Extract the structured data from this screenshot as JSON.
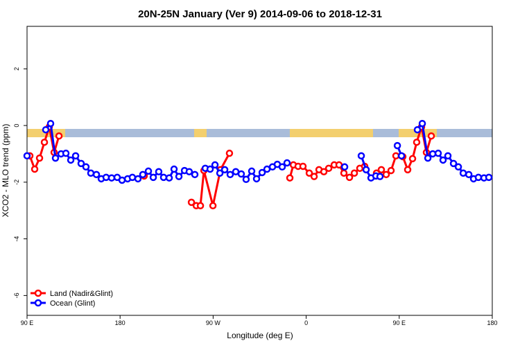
{
  "chart_data": {
    "type": "line",
    "title": "20N-25N January (Ver 9)   2014-09-06 to 2018-12-31",
    "x_label": "Longitude (deg E)",
    "y_label": "XCO2 - MLO trend (ppm)",
    "xlim": [
      90,
      540
    ],
    "ylim": [
      -6.7,
      3.5
    ],
    "xticks": [
      {
        "value": 90,
        "label": "90 E"
      },
      {
        "value": 180,
        "label": "180"
      },
      {
        "value": 270,
        "label": "90 W"
      },
      {
        "value": 360,
        "label": "0"
      },
      {
        "value": 450,
        "label": "90 E"
      },
      {
        "value": 540,
        "label": "180"
      }
    ],
    "yticks": [
      2,
      0,
      -2,
      -4,
      -6
    ],
    "legend": "bottom-left",
    "series": [
      {
        "name": "Land (Nadir&Glint)",
        "color": "#ff0000",
        "x": [
          92.7,
          97.4,
          102.1,
          106.8,
          111.5,
          116.2,
          120.9,
          null,
          203.3,
          null,
          249.0,
          253.7,
          257.7,
          261.1,
          269.8,
          277.1,
          285.8,
          null,
          344.2,
          347.6,
          352.2,
          356.9,
          363.0,
          367.7,
          372.4,
          377.1,
          381.8,
          387.1,
          391.8,
          396.5,
          401.9,
          406.6,
          411.9,
          416.6,
          null,
          428.0,
          432.7,
          437.4,
          442.1,
          446.8,
          453.5,
          458.2,
          462.9,
          466.9,
          471.6,
          476.3,
          481.0
        ],
        "values": [
          -1.07,
          -1.54,
          -1.15,
          -0.59,
          -0.05,
          -0.95,
          -0.37,
          null,
          -1.78,
          null,
          -2.71,
          -2.83,
          -2.83,
          -1.59,
          -2.83,
          -1.56,
          -0.98,
          null,
          -1.85,
          -1.39,
          -1.44,
          -1.44,
          -1.68,
          -1.8,
          -1.56,
          -1.63,
          -1.51,
          -1.39,
          -1.39,
          -1.68,
          -1.83,
          -1.68,
          -1.51,
          -1.44,
          null,
          -1.68,
          -1.56,
          -1.73,
          -1.59,
          -1.07,
          -1.1,
          -1.56,
          -1.17,
          -0.59,
          -0.05,
          -0.95,
          -0.37
        ]
      },
      {
        "name": "Ocean (Glint)",
        "color": "#0000ff",
        "x": [
          90.0,
          null,
          108.1,
          112.8,
          117.5,
          122.9,
          127.6,
          132.3,
          137.0,
          142.3,
          147.0,
          151.7,
          157.1,
          161.8,
          166.5,
          171.8,
          177.2,
          181.9,
          187.3,
          191.9,
          197.3,
          202.0,
          207.4,
          212.1,
          217.4,
          222.1,
          227.5,
          232.2,
          236.9,
          242.3,
          246.9,
          252.3,
          null,
          262.4,
          267.1,
          271.8,
          276.5,
          281.2,
          286.5,
          291.9,
          297.2,
          301.9,
          307.3,
          312.0,
          317.4,
          322.1,
          327.4,
          332.1,
          336.8,
          341.5,
          null,
          397.2,
          null,
          413.3,
          418.0,
          422.7,
          427.4,
          431.4,
          null,
          448.2,
          452.2,
          null,
          467.6,
          472.3,
          477.7,
          482.4,
          487.7,
          492.4,
          497.1,
          502.5,
          507.2,
          511.9,
          517.3,
          521.9,
          526.6,
          532.0,
          536.7
        ],
        "values": [
          -1.07,
          null,
          -0.15,
          0.07,
          -1.15,
          -1.0,
          -0.98,
          -1.22,
          -1.07,
          -1.34,
          -1.46,
          -1.68,
          -1.73,
          -1.88,
          -1.83,
          -1.85,
          -1.83,
          -1.93,
          -1.88,
          -1.83,
          -1.88,
          -1.73,
          -1.61,
          -1.83,
          -1.63,
          -1.83,
          -1.85,
          -1.54,
          -1.8,
          -1.59,
          -1.63,
          -1.73,
          null,
          -1.51,
          -1.54,
          -1.39,
          -1.68,
          -1.56,
          -1.73,
          -1.63,
          -1.71,
          -1.9,
          -1.61,
          -1.88,
          -1.66,
          -1.54,
          -1.46,
          -1.37,
          -1.46,
          -1.32,
          null,
          -1.46,
          null,
          -1.07,
          -1.56,
          -1.85,
          -1.78,
          -1.8,
          null,
          -0.71,
          -1.07,
          null,
          -0.15,
          0.07,
          -1.15,
          -1.0,
          -0.98,
          -1.22,
          -1.07,
          -1.34,
          -1.46,
          -1.68,
          -1.73,
          -1.88,
          -1.83,
          -1.85,
          -1.83
        ]
      }
    ]
  }
}
